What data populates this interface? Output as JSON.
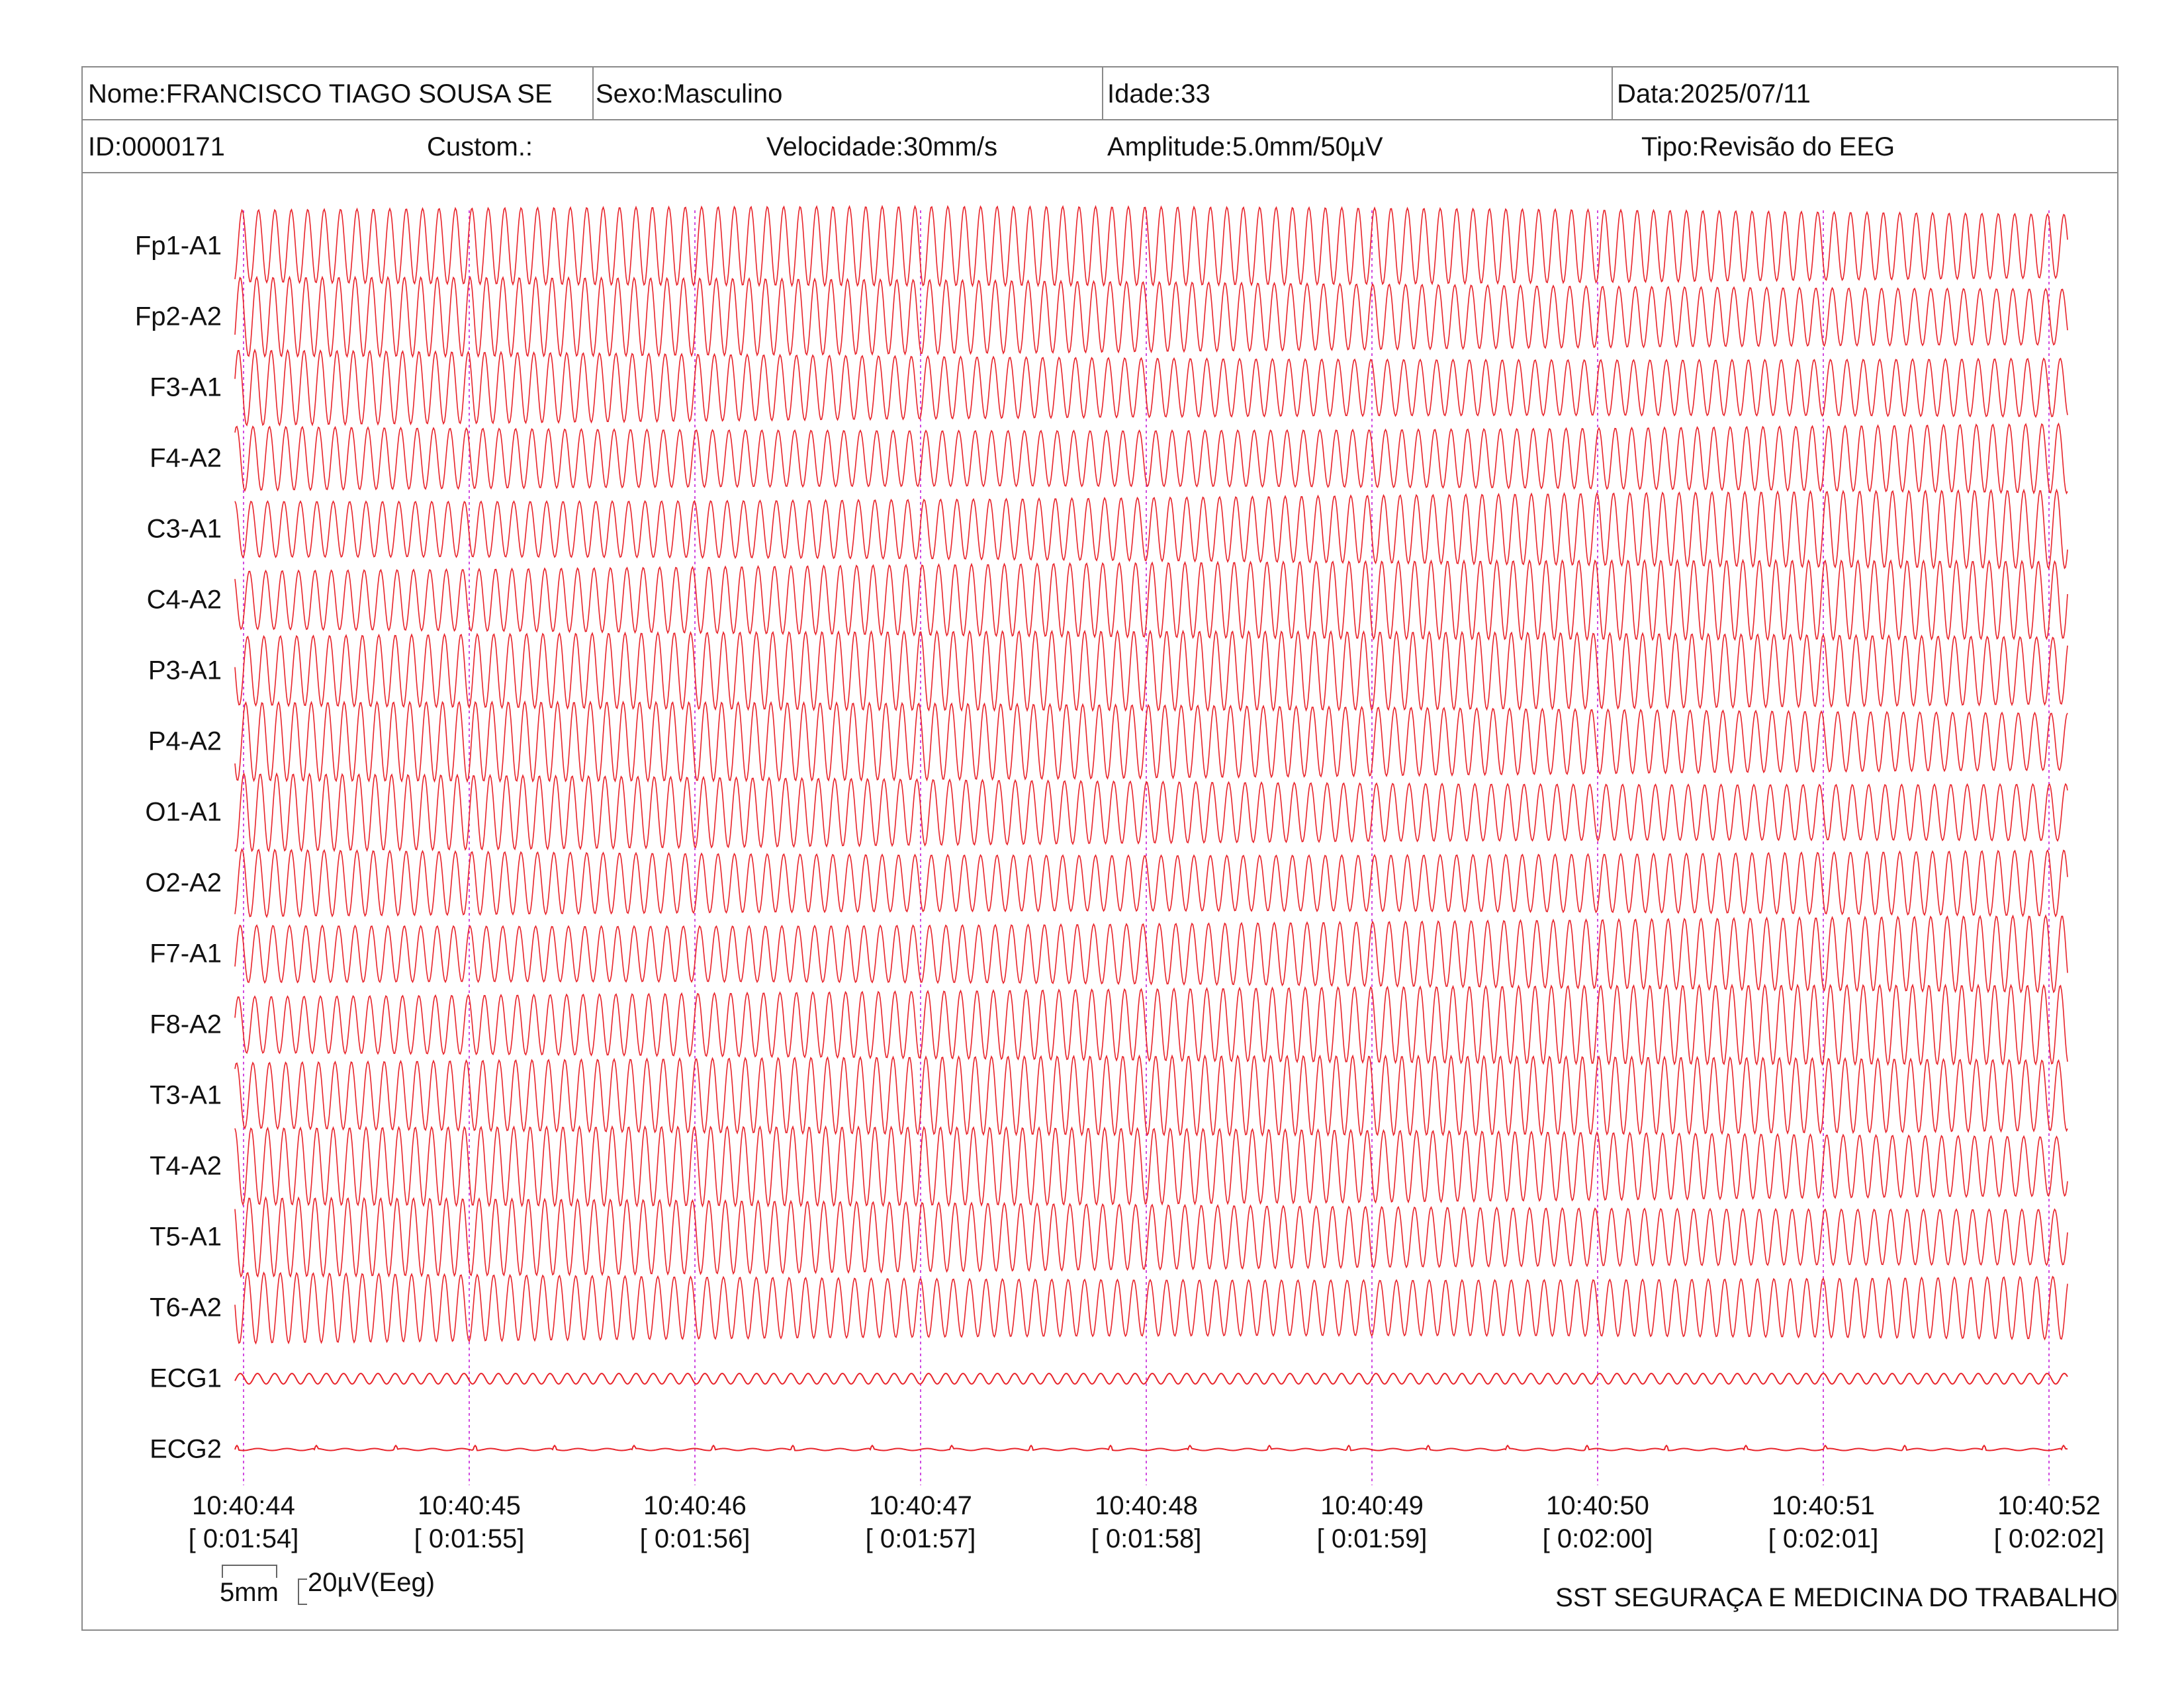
{
  "header": {
    "nome": "Nome:FRANCISCO TIAGO SOUSA SE",
    "sexo": "Sexo:Masculino",
    "idade": "Idade:33",
    "data": "Data:2025/07/11",
    "id": "ID:0000171",
    "custom": "Custom.:",
    "velocidade": "Velocidade:30mm/s",
    "amplitude": "Amplitude:5.0mm/50µV",
    "tipo": "Tipo:Revisão do EEG"
  },
  "channels": [
    "Fp1-A1",
    "Fp2-A2",
    "F3-A1",
    "F4-A2",
    "C3-A1",
    "C4-A2",
    "P3-A1",
    "P4-A2",
    "O1-A1",
    "O2-A2",
    "F7-A1",
    "F8-A2",
    "T3-A1",
    "T4-A2",
    "T5-A1",
    "T6-A2",
    "ECG1",
    "ECG2"
  ],
  "time_marks": [
    {
      "clock": "10:40:44",
      "elapsed": "[ 0:01:54]"
    },
    {
      "clock": "10:40:45",
      "elapsed": "[ 0:01:55]"
    },
    {
      "clock": "10:40:46",
      "elapsed": "[ 0:01:56]"
    },
    {
      "clock": "10:40:47",
      "elapsed": "[ 0:01:57]"
    },
    {
      "clock": "10:40:48",
      "elapsed": "[ 0:01:58]"
    },
    {
      "clock": "10:40:49",
      "elapsed": "[ 0:01:59]"
    },
    {
      "clock": "10:40:50",
      "elapsed": "[ 0:02:00]"
    },
    {
      "clock": "10:40:51",
      "elapsed": "[ 0:02:01]"
    },
    {
      "clock": "10:40:52",
      "elapsed": "[ 0:02:02]"
    }
  ],
  "scale": {
    "time": "5mm",
    "amplitude": "20µV(Eeg)"
  },
  "footer": "SST SEGURAÇA E MEDICINA DO TRABALHO",
  "colors": {
    "trace": "#e8232a",
    "marker": "#d04be0",
    "border": "#8a8a8a"
  }
}
